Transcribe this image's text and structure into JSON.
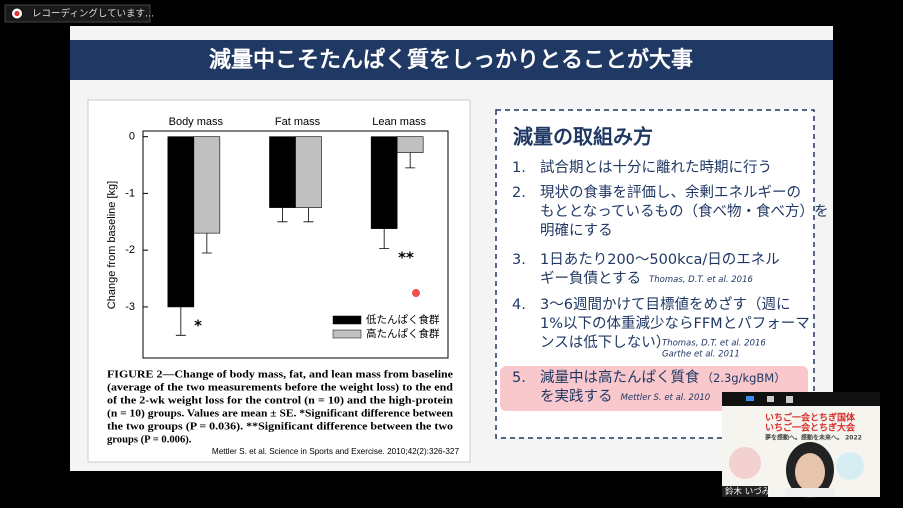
{
  "recording": "レコーディングしています...",
  "slide": {
    "title": "減量中こそたんぱく質をしっかりとることが大事",
    "figure": {
      "chart_data": {
        "type": "bar",
        "ylabel": "Change from baseline [kg]",
        "categories": [
          "Body mass",
          "Fat mass",
          "Lean mass"
        ],
        "series": [
          {
            "name": "低たんぱく食群",
            "color": "#000000",
            "values": [
              -3.0,
              -1.25,
              -1.62
            ],
            "errors": [
              0.5,
              0.25,
              0.35
            ]
          },
          {
            "name": "高たんぱく食群",
            "color": "#c0c0c0",
            "values": [
              -1.7,
              -1.25,
              -0.28
            ],
            "errors": [
              0.35,
              0.25,
              0.27
            ]
          }
        ],
        "annotations": [
          "*",
          "**"
        ],
        "ylim": [
          -3.9,
          0.1
        ],
        "yticks": [
          0,
          -1,
          -2,
          -3
        ]
      },
      "caption": [
        "FIGURE 2—Change of body mass, fat, and lean mass from baseline",
        "(average of the two measurements before the weight loss) to the end",
        "of the 2-wk weight loss for the control (n = 10) and the high-protein",
        "(n = 10) groups. Values are mean ± SE. *Significant difference between",
        "the two groups (P = 0.036). **Significant difference between the two",
        "groups (P = 0.006)."
      ],
      "citation": "Mettler S. et al. Science in Sports and Exercise. 2010;42(2):326-327"
    },
    "panel": {
      "heading": "減量の取組み方",
      "items": [
        {
          "number": "1.",
          "lines": [
            "試合期とは十分に離れた時期に行う"
          ]
        },
        {
          "number": "2.",
          "lines": [
            "現状の食事を評価し、余剰エネルギーの",
            "もととなっているもの（食べ物・食べ方）を",
            "明確にする"
          ]
        },
        {
          "number": "3.",
          "lines": [
            "1日あたり200～500kca/日のエネル",
            "ギー負債とする"
          ],
          "refs": [
            "Thomas, D.T. et al. 2016"
          ]
        },
        {
          "number": "4.",
          "lines": [
            "3～6週間かけて目標値をめざす（週に",
            "1%以下の体重減少ならFFMとパフォーマ",
            "ンスは低下しない）"
          ],
          "refs": [
            "Thomas, D.T. et al. 2016",
            "Garthe et al. 2011"
          ]
        },
        {
          "number": "5.",
          "lines": [
            "減量中は高たんぱく質食",
            "を実践する"
          ],
          "note": "（2.3g/kgBM）",
          "refs": [
            "Mettler S. et al. 2010"
          ]
        }
      ]
    }
  },
  "participant": {
    "banner": [
      "いちご一会とちぎ国体",
      "いちご一会とちぎ大会",
      "夢を感動へ。感動を未来へ。 2022"
    ],
    "name": "鈴木 いづみ"
  }
}
